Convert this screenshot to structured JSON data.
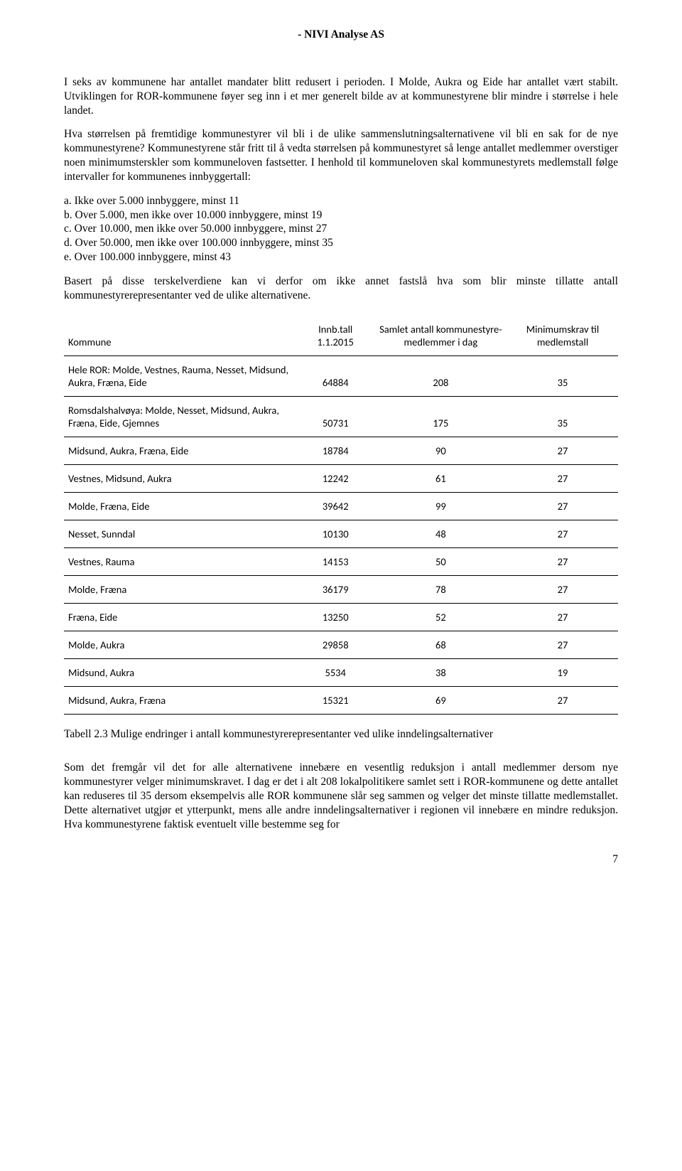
{
  "header": "- NIVI Analyse AS",
  "para1": "I seks av kommunene har antallet mandater blitt redusert i perioden. I Molde, Aukra og Eide har antallet vært stabilt. Utviklingen for ROR-kommunene føyer seg inn i et mer generelt bilde av at kommunestyrene blir mindre i størrelse i hele landet.",
  "para2": "Hva størrelsen på fremtidige kommunestyrer vil bli i de ulike sammenslutningsalternativene vil bli en sak for de nye kommunestyrene? Kommunestyrene står fritt til å vedta størrelsen på kommunestyret så lenge antallet medlemmer overstiger noen minimumsterskler som kommuneloven fastsetter. I henhold til kommuneloven skal kommunestyrets medlemstall følge intervaller for kommunenes innbyggertall:",
  "listItems": [
    "a.  Ikke over 5.000 innbyggere, minst 11",
    "b.  Over 5.000, men ikke over 10.000 innbyggere, minst 19",
    "c.  Over 10.000, men ikke over 50.000 innbyggere, minst 27",
    "d.  Over 50.000, men ikke over 100.000 innbyggere, minst 35",
    "e.  Over 100.000 innbyggere, minst 43"
  ],
  "para3": "Basert på disse terskelverdiene kan vi derfor om ikke annet fastslå hva som blir minste tillatte antall kommunestyrerepresentanter ved de ulike alternativene.",
  "table": {
    "columns": [
      "Kommune",
      "Innb.tall 1.1.2015",
      "Samlet antall kommunestyre-medlemmer i dag",
      "Minimumskrav til medlemstall"
    ],
    "rows": [
      [
        "Hele ROR: Molde, Vestnes, Rauma, Nesset, Midsund, Aukra, Fræna, Eide",
        "64884",
        "208",
        "35"
      ],
      [
        "Romsdalshalvøya: Molde, Nesset, Midsund, Aukra, Fræna, Eide, Gjemnes",
        "50731",
        "175",
        "35"
      ],
      [
        "Midsund, Aukra, Fræna, Eide",
        "18784",
        "90",
        "27"
      ],
      [
        "Vestnes, Midsund, Aukra",
        "12242",
        "61",
        "27"
      ],
      [
        "Molde, Fræna, Eide",
        "39642",
        "99",
        "27"
      ],
      [
        "Nesset, Sunndal",
        "10130",
        "48",
        "27"
      ],
      [
        "Vestnes, Rauma",
        "14153",
        "50",
        "27"
      ],
      [
        "Molde, Fræna",
        "36179",
        "78",
        "27"
      ],
      [
        "Fræna, Eide",
        "13250",
        "52",
        "27"
      ],
      [
        "Molde, Aukra",
        "29858",
        "68",
        "27"
      ],
      [
        "Midsund, Aukra",
        "5534",
        "38",
        "19"
      ],
      [
        "Midsund, Aukra, Fræna",
        "15321",
        "69",
        "27"
      ]
    ]
  },
  "caption": "Tabell 2.3 Mulige endringer i antall kommunestyrerepresentanter ved ulike inndelingsalternativer",
  "para4": "Som det fremgår vil det for alle alternativene innebære en vesentlig reduksjon i antall medlemmer dersom nye kommunestyrer velger minimumskravet. I dag er det i alt 208 lokalpolitikere samlet sett i ROR-kommunene og dette antallet kan reduseres til 35 dersom eksempelvis alle ROR kommunene slår seg sammen og velger det minste tillatte medlemstallet. Dette alternativet utgjør et ytterpunkt, mens alle andre inndelingsalternativer i regionen vil innebære en mindre reduksjon. Hva kommunestyrene faktisk eventuelt ville bestemme seg for",
  "pageNumber": "7"
}
